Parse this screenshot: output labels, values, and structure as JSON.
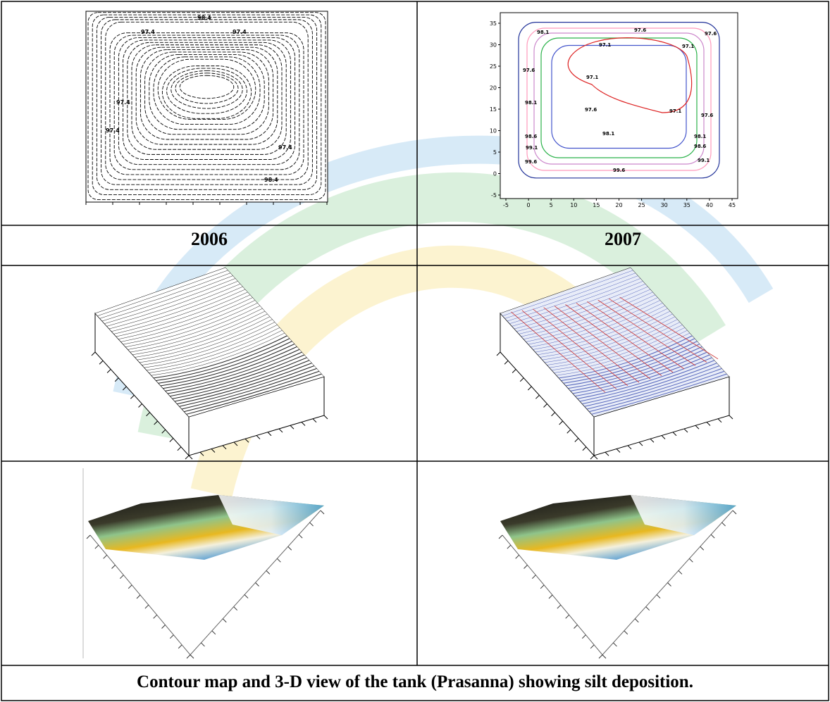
{
  "years": [
    "2006",
    "2007"
  ],
  "caption": "Contour map and 3-D view of the tank (Prasanna) showing silt deposition.",
  "contour_2006": {
    "labels": [
      "97.4",
      "97.4",
      "97.4",
      "97.4",
      "98.4",
      "97.4",
      "98.4"
    ]
  },
  "contour_2007": {
    "x_ticks": [
      "-5",
      "0",
      "5",
      "10",
      "15",
      "20",
      "25",
      "30",
      "35",
      "40",
      "45"
    ],
    "y_ticks": [
      "35",
      "30",
      "25",
      "20",
      "15",
      "10",
      "5",
      "0",
      "-5"
    ],
    "labels": [
      "98.1",
      "97.6",
      "97.1",
      "97.6",
      "97.1",
      "97.6",
      "97.1",
      "98.1",
      "97.6",
      "97.1",
      "97.6",
      "98.1",
      "98.6",
      "98.1",
      "98.6",
      "99.1",
      "99.6",
      "99.6",
      "99.1"
    ]
  }
}
